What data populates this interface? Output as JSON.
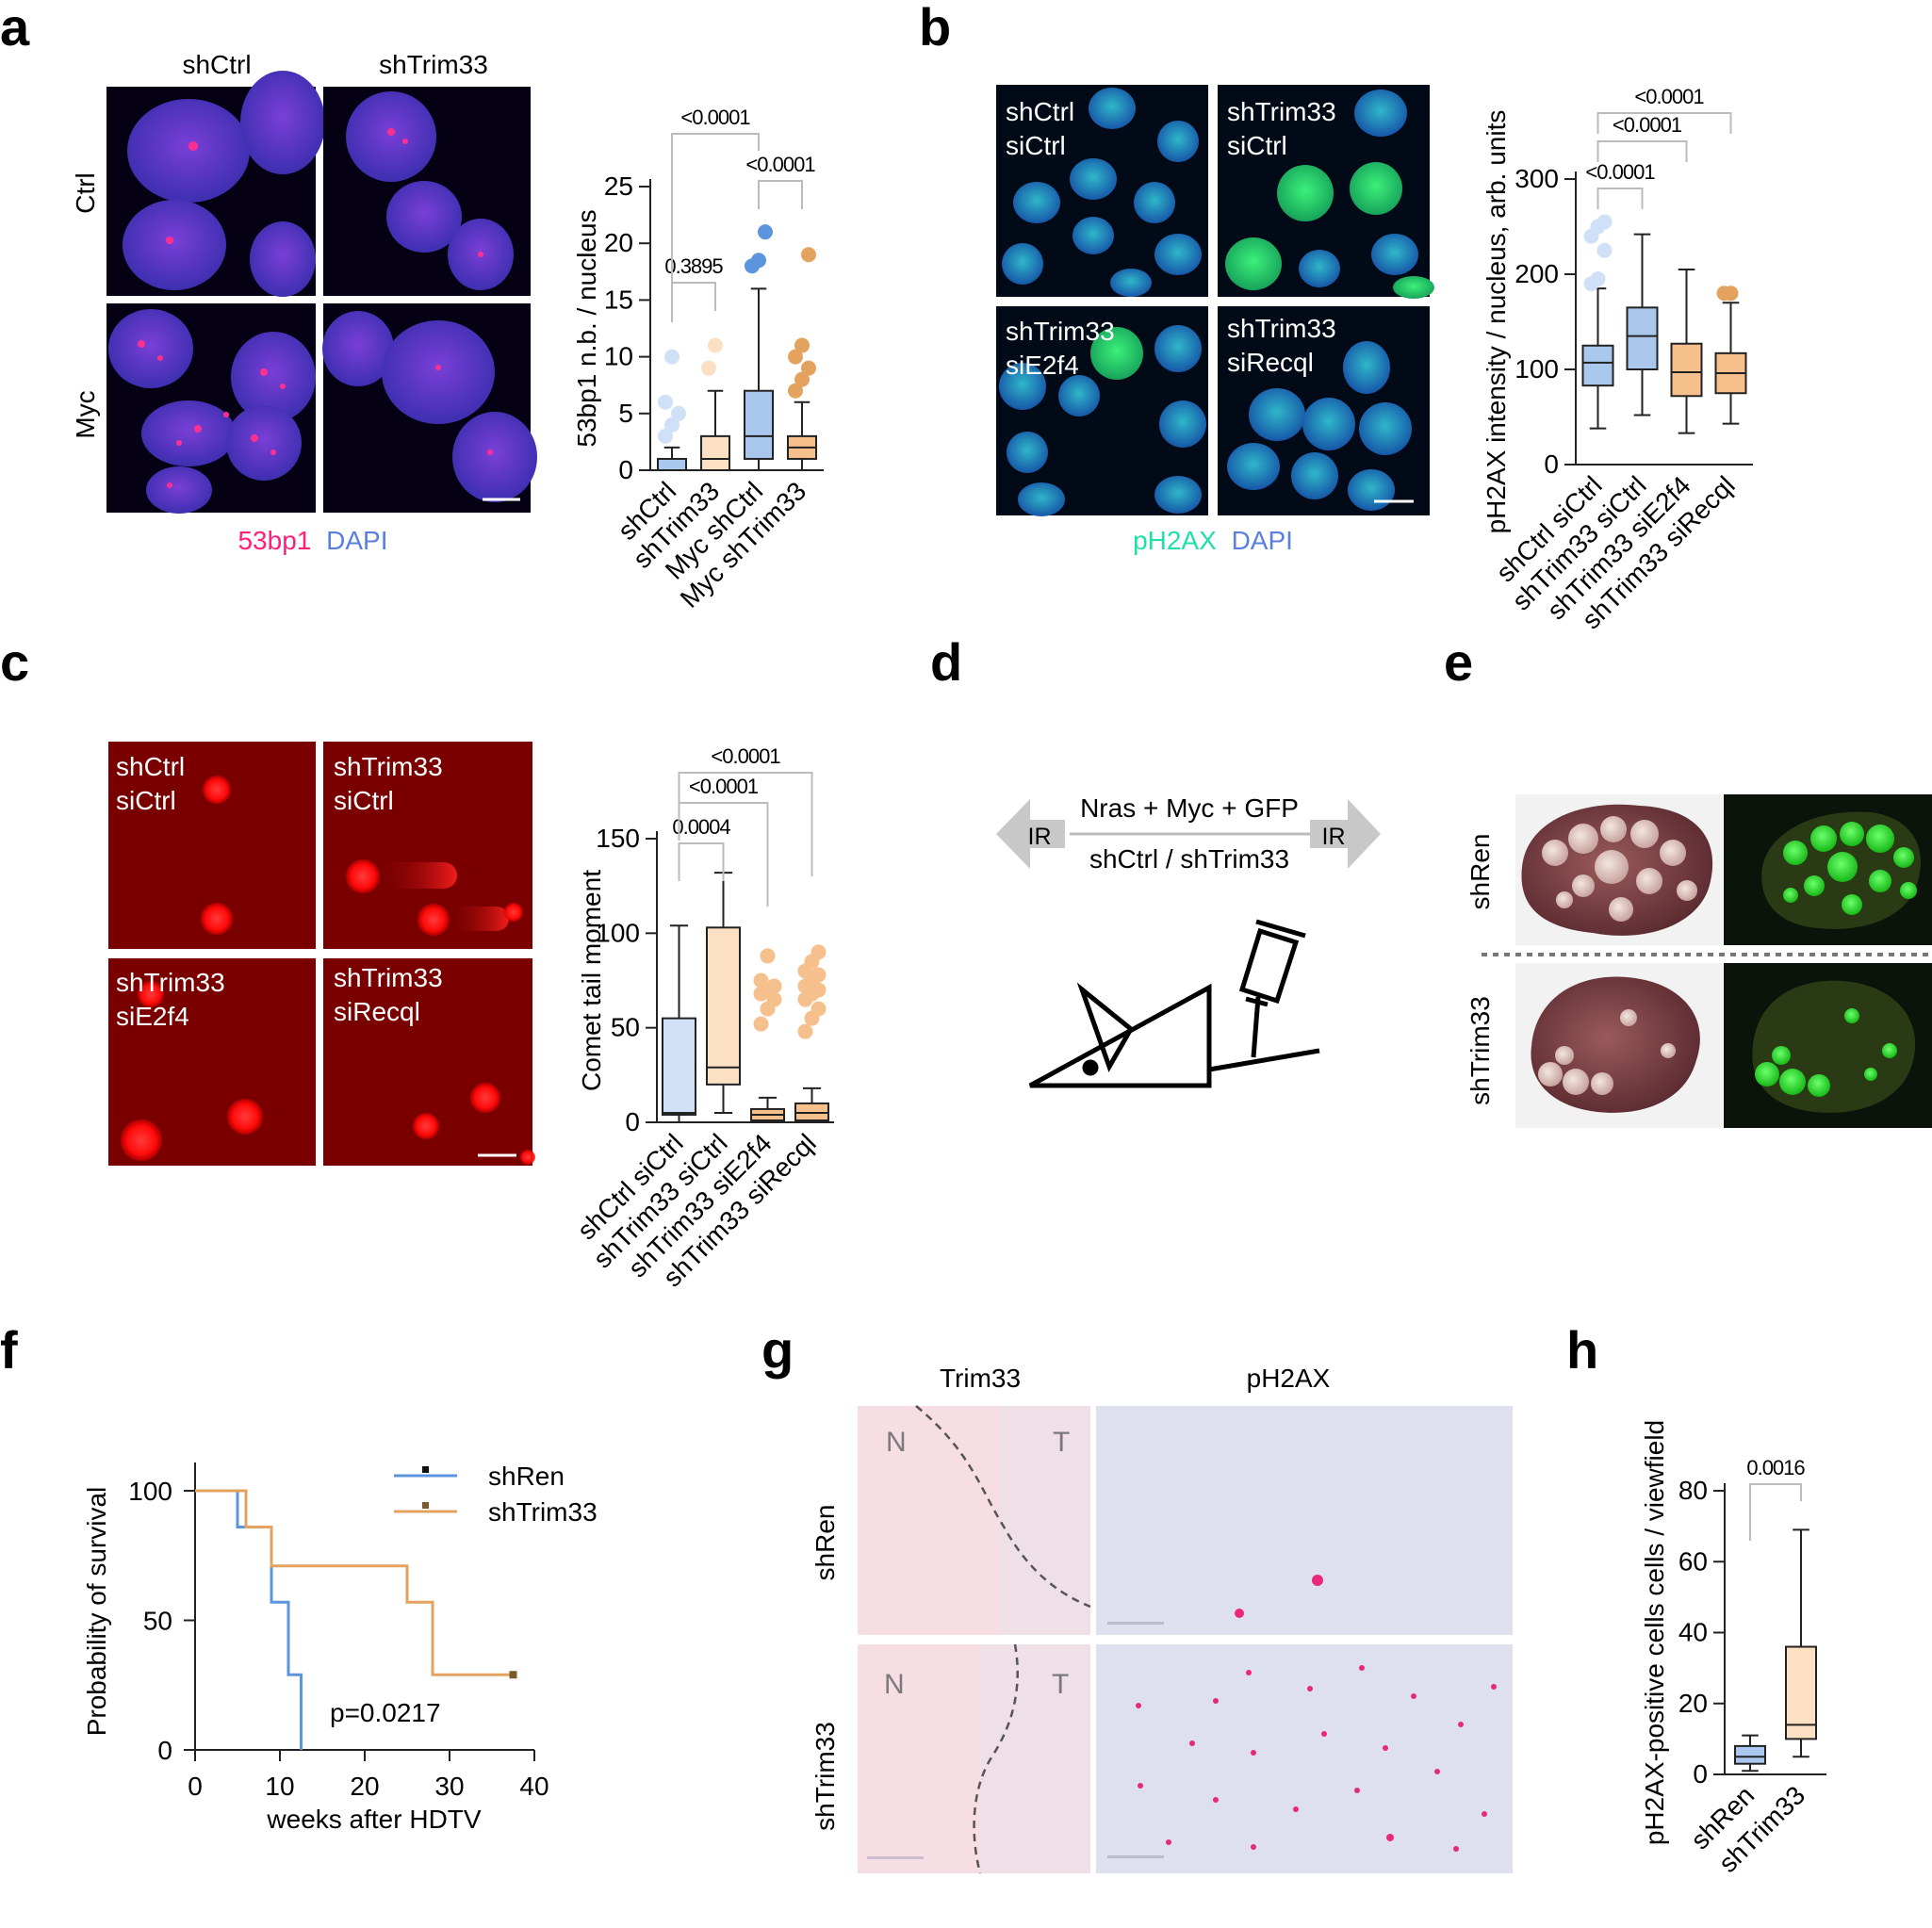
{
  "panel_letters": {
    "a": "a",
    "b": "b",
    "c": "c",
    "d": "d",
    "e": "e",
    "f": "f",
    "g": "g",
    "h": "h"
  },
  "colors": {
    "blue_fill": "#aac8ee",
    "blue_light_fill": "#cfe0f7",
    "orange_fill": "#f6c08d",
    "orange_light_fill": "#fbe0c4",
    "blue_line": "#5b95dd",
    "orange_line": "#e3a35f",
    "axis": "#222222",
    "bracket": "#bbbbbb",
    "pink": "#ff1f7a",
    "dapi_blue": "#5b7fe0",
    "green_label": "#1fe0a8"
  },
  "panel_a": {
    "col_labels": [
      "shCtrl",
      "shTrim33"
    ],
    "row_labels": [
      "Ctrl",
      "Myc"
    ],
    "legend": {
      "stain1": "53bp1",
      "stain2": "DAPI"
    }
  },
  "panel_b": {
    "tile_labels": [
      [
        "shCtrl",
        "siCtrl"
      ],
      [
        "shTrim33",
        "siCtrl"
      ],
      [
        "shTrim33",
        "siE2f4"
      ],
      [
        "shTrim33",
        "siRecql"
      ]
    ],
    "legend": {
      "stain1": "pH2AX",
      "stain2": "DAPI"
    }
  },
  "panel_c": {
    "tile_labels": [
      [
        "shCtrl",
        "siCtrl"
      ],
      [
        "shTrim33",
        "siCtrl"
      ],
      [
        "shTrim33",
        "siE2f4"
      ],
      [
        "shTrim33",
        "siRecql"
      ]
    ]
  },
  "panel_d": {
    "top_text": "Nras + Myc + GFP",
    "bottom_text": "shCtrl / shTrim33",
    "left_ir": "IR",
    "right_ir": "IR"
  },
  "panel_e": {
    "row_labels": [
      "shRen",
      "shTrim33"
    ]
  },
  "panel_g": {
    "col_labels": [
      "Trim33",
      "pH2AX"
    ],
    "row_labels": [
      "shRen",
      "shTrim33"
    ],
    "region_N": "N",
    "region_T": "T"
  },
  "chart_data": [
    {
      "id": "a",
      "type": "box",
      "ylabel": "53bp1 n.b. / nucleus",
      "ylim": [
        0,
        25
      ],
      "yticks": [
        0,
        5,
        10,
        15,
        20,
        25
      ],
      "categories": [
        "shCtrl",
        "shTrim33",
        "Myc shCtrl",
        "Myc shTrim33"
      ],
      "boxes": [
        {
          "min": 0,
          "q1": 0,
          "median": 0,
          "q3": 1,
          "max": 2,
          "outliers": [
            3,
            4,
            5,
            6,
            10
          ]
        },
        {
          "min": 0,
          "q1": 0,
          "median": 1,
          "q3": 3,
          "max": 7,
          "outliers": [
            9,
            11
          ]
        },
        {
          "min": 0,
          "q1": 1,
          "median": 3,
          "q3": 7,
          "max": 16,
          "outliers": [
            18,
            18.5,
            21
          ]
        },
        {
          "min": 0,
          "q1": 1,
          "median": 2,
          "q3": 3,
          "max": 6,
          "outliers": [
            7,
            8,
            9,
            10,
            11,
            19
          ]
        }
      ],
      "brackets": [
        {
          "from": 0,
          "to": 1,
          "label": "0.3895"
        },
        {
          "from": 2,
          "to": 3,
          "label": "<0.0001"
        },
        {
          "from": 0,
          "to": 2,
          "label": "<0.0001"
        }
      ]
    },
    {
      "id": "b",
      "type": "box",
      "ylabel": "pH2AX intensity / nucleus, arb. units",
      "ylim": [
        0,
        300
      ],
      "yticks": [
        0,
        100,
        200,
        300
      ],
      "categories": [
        "shCtrl siCtrl",
        "shTrim33 siCtrl",
        "shTrim33 siE2f4",
        "shTrim33 siRecql"
      ],
      "boxes": [
        {
          "min": 38,
          "q1": 83,
          "median": 107,
          "q3": 125,
          "max": 185,
          "outliers": [
            190,
            195,
            225,
            240,
            250,
            255
          ]
        },
        {
          "min": 52,
          "q1": 100,
          "median": 135,
          "q3": 165,
          "max": 242,
          "outliers": []
        },
        {
          "min": 33,
          "q1": 72,
          "median": 97,
          "q3": 127,
          "max": 205,
          "outliers": []
        },
        {
          "min": 43,
          "q1": 75,
          "median": 96,
          "q3": 117,
          "max": 170,
          "outliers": [
            180,
            180
          ]
        }
      ],
      "brackets": [
        {
          "from": 0,
          "to": 1,
          "label": "<0.0001"
        },
        {
          "from": 0,
          "to": 2,
          "label": "<0.0001"
        },
        {
          "from": 0,
          "to": 3,
          "label": "<0.0001"
        }
      ]
    },
    {
      "id": "c",
      "type": "box",
      "ylabel": "Comet tail moment",
      "ylim": [
        0,
        150
      ],
      "yticks": [
        0,
        50,
        100,
        150
      ],
      "categories": [
        "shCtrl siCtrl",
        "shTrim33 siCtrl",
        "shTrim33 siE2f4",
        "shTrim33 siRecql"
      ],
      "boxes": [
        {
          "min": 0,
          "q1": 4,
          "median": 5,
          "q3": 55,
          "max": 104,
          "outliers": []
        },
        {
          "min": 5,
          "q1": 20,
          "median": 29,
          "q3": 103,
          "max": 132,
          "outliers": []
        },
        {
          "min": 0,
          "q1": 1,
          "median": 4,
          "q3": 7,
          "max": 13,
          "outliers": [
            52,
            60,
            65,
            68,
            70,
            72,
            75,
            88
          ]
        },
        {
          "min": 0,
          "q1": 1,
          "median": 5,
          "q3": 10,
          "max": 18,
          "outliers": [
            48,
            55,
            60,
            65,
            68,
            70,
            72,
            75,
            78,
            80,
            85,
            90
          ]
        }
      ],
      "brackets": [
        {
          "from": 0,
          "to": 1,
          "label": "0.0004"
        },
        {
          "from": 0,
          "to": 2,
          "label": "<0.0001"
        },
        {
          "from": 0,
          "to": 3,
          "label": "<0.0001"
        }
      ]
    },
    {
      "id": "f",
      "type": "line",
      "xlabel": "weeks after HDTV",
      "ylabel": "Probability of survival",
      "xlim": [
        0,
        40
      ],
      "ylim": [
        0,
        100
      ],
      "xticks": [
        0,
        10,
        20,
        30,
        40
      ],
      "yticks": [
        0,
        50,
        100
      ],
      "series": [
        {
          "name": "shRen",
          "points": [
            [
              0,
              100
            ],
            [
              5,
              100
            ],
            [
              5,
              86
            ],
            [
              9,
              86
            ],
            [
              9,
              57
            ],
            [
              11,
              57
            ],
            [
              11,
              29
            ],
            [
              12.5,
              29
            ],
            [
              12.5,
              0
            ]
          ]
        },
        {
          "name": "shTrim33",
          "points": [
            [
              0,
              100
            ],
            [
              6,
              100
            ],
            [
              6,
              86
            ],
            [
              9,
              86
            ],
            [
              9,
              71
            ],
            [
              25,
              71
            ],
            [
              25,
              57
            ],
            [
              28,
              57
            ],
            [
              28,
              29
            ],
            [
              37.5,
              29
            ]
          ]
        }
      ],
      "annotation": "p=0.0217"
    },
    {
      "id": "h",
      "type": "box",
      "ylabel": "pH2AX-positive cells cells / viewfield",
      "ylim": [
        0,
        80
      ],
      "yticks": [
        0,
        20,
        40,
        60,
        80
      ],
      "categories": [
        "shRen",
        "shTrim33"
      ],
      "boxes": [
        {
          "min": 1,
          "q1": 3,
          "median": 5,
          "q3": 8,
          "max": 11,
          "outliers": []
        },
        {
          "min": 5,
          "q1": 10,
          "median": 14,
          "q3": 36,
          "max": 69,
          "outliers": []
        }
      ],
      "brackets": [
        {
          "from": 0,
          "to": 1,
          "label": "0.0016"
        }
      ]
    }
  ]
}
